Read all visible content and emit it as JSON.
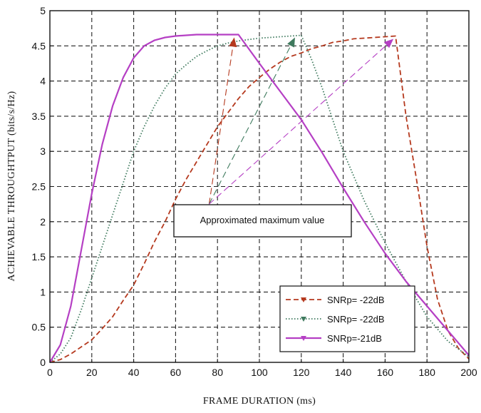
{
  "chart_data": {
    "type": "line",
    "xlabel": "FRAME DURATION (ms)",
    "ylabel": "ACHIEVABLE THROUGHTPUT (bits/s/Hz)",
    "xlim": [
      0,
      200
    ],
    "ylim": [
      0,
      5
    ],
    "xticks": [
      "0",
      "20",
      "40",
      "60",
      "80",
      "100",
      "120",
      "140",
      "160",
      "180",
      "200"
    ],
    "yticks": [
      "0",
      "0.5",
      "1",
      "1.5",
      "2",
      "2.5",
      "3",
      "3.5",
      "4",
      "4.5",
      "5"
    ],
    "grid": true,
    "legend_position": "bottom-right",
    "annotation": {
      "text": "Approximated maximum value",
      "origin": [
        76,
        2.25
      ],
      "arrow_targets": [
        [
          88,
          4.62
        ],
        [
          117,
          4.62
        ],
        [
          164,
          4.6
        ]
      ]
    },
    "series": [
      {
        "name": "SNRp= -22dB",
        "color": "#b5391e",
        "style": "dashed",
        "marker": "triangle",
        "x": [
          0,
          5,
          10,
          15,
          20,
          25,
          30,
          35,
          40,
          45,
          50,
          55,
          60,
          65,
          70,
          75,
          80,
          85,
          90,
          95,
          100,
          105,
          110,
          115,
          120,
          125,
          130,
          135,
          140,
          145,
          150,
          155,
          160,
          165,
          170,
          175,
          180,
          185,
          190,
          195,
          200
        ],
        "y": [
          0,
          0.04,
          0.12,
          0.22,
          0.32,
          0.48,
          0.65,
          0.88,
          1.1,
          1.4,
          1.72,
          2.0,
          2.32,
          2.6,
          2.85,
          3.1,
          3.35,
          3.55,
          3.75,
          3.92,
          4.05,
          4.17,
          4.27,
          4.35,
          4.4,
          4.46,
          4.5,
          4.55,
          4.57,
          4.6,
          4.61,
          4.62,
          4.63,
          4.64,
          3.5,
          2.6,
          1.65,
          0.9,
          0.45,
          0.2,
          0.05
        ]
      },
      {
        "name": "SNRp= -22dB",
        "color": "#3f7a5e",
        "style": "dotted",
        "marker": "triangle",
        "x": [
          0,
          5,
          10,
          15,
          20,
          25,
          30,
          35,
          40,
          45,
          50,
          55,
          60,
          65,
          70,
          75,
          80,
          85,
          90,
          95,
          100,
          105,
          110,
          115,
          120,
          125,
          130,
          140,
          150,
          160,
          170,
          180,
          190,
          200
        ],
        "y": [
          0,
          0.12,
          0.35,
          0.75,
          1.2,
          1.65,
          2.1,
          2.55,
          3.0,
          3.35,
          3.65,
          3.9,
          4.1,
          4.23,
          4.35,
          4.43,
          4.5,
          4.54,
          4.57,
          4.59,
          4.61,
          4.62,
          4.63,
          4.64,
          4.65,
          4.3,
          3.9,
          3.0,
          2.3,
          1.7,
          1.15,
          0.65,
          0.3,
          0.08
        ]
      },
      {
        "name": "SNRp=-21dB",
        "color": "#b53fc4",
        "style": "solid",
        "marker": "triangle",
        "x": [
          0,
          5,
          10,
          15,
          20,
          25,
          30,
          35,
          40,
          45,
          50,
          55,
          60,
          65,
          70,
          75,
          80,
          85,
          90,
          100,
          110,
          120,
          130,
          140,
          150,
          160,
          170,
          180,
          190,
          200
        ],
        "y": [
          0,
          0.25,
          0.8,
          1.6,
          2.4,
          3.1,
          3.65,
          4.05,
          4.33,
          4.5,
          4.58,
          4.62,
          4.64,
          4.65,
          4.66,
          4.66,
          4.66,
          4.66,
          4.66,
          4.25,
          3.85,
          3.45,
          2.98,
          2.48,
          2.0,
          1.55,
          1.15,
          0.8,
          0.45,
          0.1
        ]
      }
    ]
  }
}
